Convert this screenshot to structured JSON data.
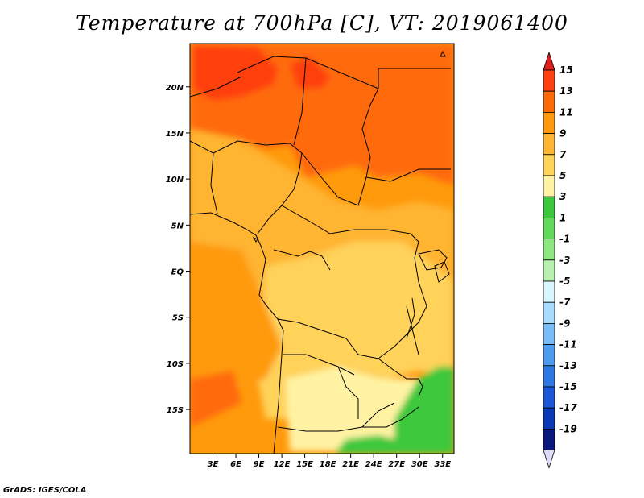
{
  "title": "Temperature at 700hPa [C], VT: 2019061400",
  "credit": "GrADS: IGES/COLA",
  "map": {
    "lat_ticks": [
      {
        "label": "20N",
        "value": 20
      },
      {
        "label": "15N",
        "value": 15
      },
      {
        "label": "10N",
        "value": 10
      },
      {
        "label": "5N",
        "value": 5
      },
      {
        "label": "EQ",
        "value": 0
      },
      {
        "label": "5S",
        "value": -5
      },
      {
        "label": "10S",
        "value": -10
      },
      {
        "label": "15S",
        "value": -15
      }
    ],
    "lon_ticks": [
      {
        "label": "3E",
        "value": 3
      },
      {
        "label": "6E",
        "value": 6
      },
      {
        "label": "9E",
        "value": 9
      },
      {
        "label": "12E",
        "value": 12
      },
      {
        "label": "15E",
        "value": 15
      },
      {
        "label": "18E",
        "value": 18
      },
      {
        "label": "21E",
        "value": 21
      },
      {
        "label": "24E",
        "value": 24
      },
      {
        "label": "27E",
        "value": 27
      },
      {
        "label": "30E",
        "value": 30
      },
      {
        "label": "33E",
        "value": 33
      }
    ],
    "lon_range": [
      0,
      34.5
    ],
    "lat_range": [
      -19.8,
      24.7
    ]
  },
  "colorbar": {
    "labels": [
      "15",
      "13",
      "11",
      "9",
      "7",
      "5",
      "3",
      "1",
      "-1",
      "-3",
      "-5",
      "-7",
      "-9",
      "-11",
      "-13",
      "-15",
      "-17",
      "-19"
    ],
    "colors": [
      "#ff3f10",
      "#ff6a08",
      "#ff9a0c",
      "#ffb432",
      "#ffd25a",
      "#fff3a3",
      "#3cc83c",
      "#62d85a",
      "#8ee680",
      "#b8f0b0",
      "#d8f6ff",
      "#a8dcff",
      "#78bcf8",
      "#4d9cf0",
      "#2e78e6",
      "#1a58d8",
      "#0b3ab8",
      "#0a1880"
    ],
    "top_color": "#e01e1e",
    "bottom_color": "#dcdcf8"
  }
}
